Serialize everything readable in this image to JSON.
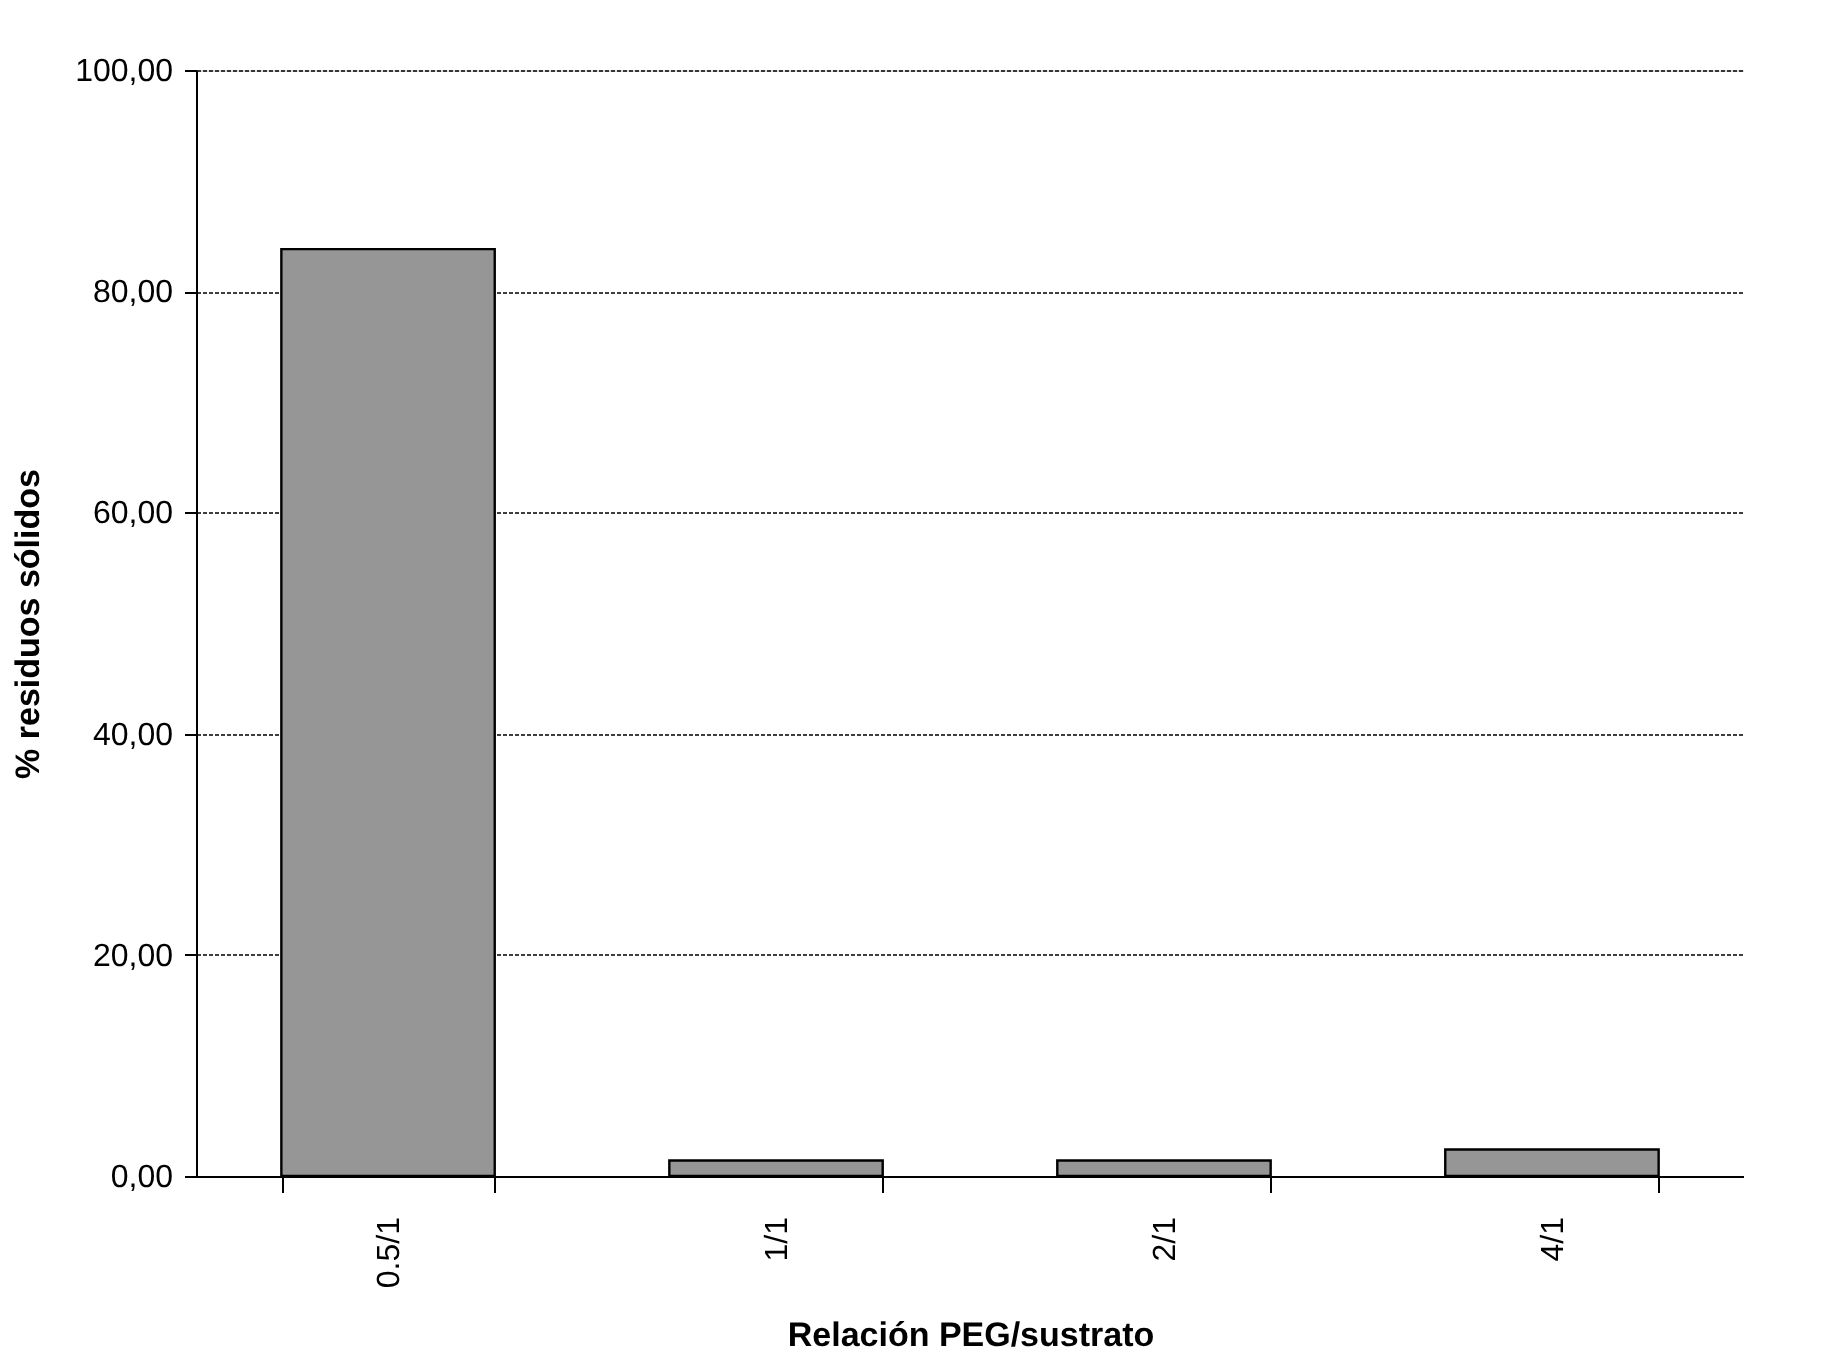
{
  "chart_data": {
    "type": "bar",
    "xlabel": "Relación PEG/sustrato",
    "ylabel": "% residuos sólidos",
    "categories": [
      "0.5/1",
      "1/1",
      "2/1",
      "4/1"
    ],
    "values": [
      83.8,
      1.4,
      1.4,
      2.4
    ],
    "color": "#969696",
    "ylim": [
      0,
      100
    ],
    "yticks": [
      {
        "value": 0,
        "label": "0,00"
      },
      {
        "value": 20,
        "label": "20,00"
      },
      {
        "value": 40,
        "label": "40,00"
      },
      {
        "value": 60,
        "label": "60,00"
      },
      {
        "value": 80,
        "label": "80,00"
      },
      {
        "value": 100,
        "label": "100,00"
      }
    ],
    "grid": "y"
  }
}
